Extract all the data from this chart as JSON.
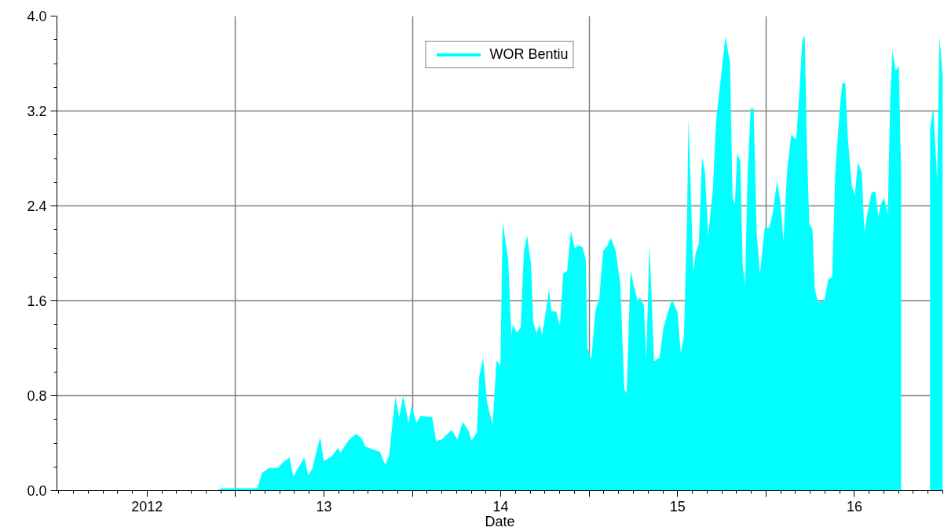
{
  "chart_data": {
    "type": "area",
    "xlabel": "Date",
    "x": [
      2012.392,
      2012.423,
      2012.459,
      2012.623,
      2012.65,
      2012.69,
      2012.738,
      2012.769,
      2012.805,
      2012.827,
      2012.889,
      2012.911,
      2012.933,
      2012.978,
      2013.0,
      2013.044,
      2013.08,
      2013.093,
      2013.137,
      2013.182,
      2013.213,
      2013.235,
      2013.288,
      2013.315,
      2013.346,
      2013.368,
      2013.404,
      2013.426,
      2013.448,
      2013.479,
      2013.497,
      2013.523,
      2013.546,
      2013.612,
      2013.634,
      2013.665,
      2013.692,
      2013.723,
      2013.754,
      2013.785,
      2013.82,
      2013.834,
      2013.865,
      2013.878,
      2013.9,
      2013.922,
      2013.954,
      2013.976,
      2013.998,
      2014.011,
      2014.042,
      2014.051,
      2014.06,
      2014.069,
      2014.091,
      2014.113,
      2014.131,
      2014.149,
      2014.171,
      2014.184,
      2014.202,
      2014.22,
      2014.233,
      2014.251,
      2014.273,
      2014.286,
      2014.313,
      2014.335,
      2014.353,
      2014.375,
      2014.397,
      2014.419,
      2014.441,
      2014.464,
      2014.481,
      2014.49,
      2014.512,
      2014.535,
      2014.557,
      2014.579,
      2014.601,
      2014.623,
      2014.65,
      2014.676,
      2014.699,
      2014.712,
      2014.734,
      2014.752,
      2014.774,
      2014.787,
      2014.809,
      2014.823,
      2014.841,
      2014.858,
      2014.867,
      2014.898,
      2014.92,
      2014.947,
      2014.969,
      2015.0,
      2015.018,
      2015.036,
      2015.053,
      2015.062,
      2015.089,
      2015.102,
      2015.12,
      2015.138,
      2015.155,
      2015.173,
      2015.2,
      2015.218,
      2015.271,
      2015.297,
      2015.311,
      2015.324,
      2015.337,
      2015.355,
      2015.368,
      2015.382,
      2015.395,
      2015.413,
      2015.43,
      2015.448,
      2015.466,
      2015.492,
      2015.519,
      2015.537,
      2015.563,
      2015.581,
      2015.599,
      2015.608,
      2015.621,
      2015.643,
      2015.67,
      2015.683,
      2015.705,
      2015.719,
      2015.732,
      2015.745,
      2015.763,
      2015.776,
      2015.794,
      2015.83,
      2015.852,
      2015.874,
      2015.892,
      2015.918,
      2015.932,
      2015.949,
      2015.963,
      2015.985,
      2016.002,
      2016.02,
      2016.042,
      2016.056,
      2016.073,
      2016.096,
      2016.118,
      2016.135,
      2016.149,
      2016.167,
      2016.189,
      2016.202,
      2016.215,
      2016.233,
      2016.251,
      2016.264,
      2016.34,
      2016.428,
      2016.446,
      2016.468,
      2016.481,
      2016.5
    ],
    "series": [
      {
        "name": "WOR Bentiu",
        "color": "#00ffff",
        "values": [
          0,
          0.02,
          0.02,
          0.02,
          0.15,
          0.19,
          0.19,
          0.24,
          0.28,
          0.12,
          0.28,
          0.13,
          0.18,
          0.45,
          0.25,
          0.29,
          0.36,
          0.32,
          0.42,
          0.48,
          0.44,
          0.37,
          0.34,
          0.33,
          0.22,
          0.29,
          0.79,
          0.62,
          0.8,
          0.57,
          0.72,
          0.57,
          0.63,
          0.62,
          0.42,
          0.43,
          0.47,
          0.51,
          0.43,
          0.58,
          0.5,
          0.42,
          0.49,
          0.96,
          1.12,
          0.75,
          0.55,
          1.1,
          1.05,
          2.26,
          1.95,
          1.62,
          1.31,
          1.4,
          1.33,
          1.38,
          2.02,
          2.15,
          1.91,
          1.42,
          1.33,
          1.4,
          1.31,
          1.47,
          1.7,
          1.51,
          1.51,
          1.39,
          1.83,
          1.85,
          2.19,
          2.04,
          2.07,
          2.05,
          1.94,
          1.2,
          1.11,
          1.51,
          1.62,
          2.02,
          2.06,
          2.13,
          2.02,
          1.74,
          0.85,
          0.82,
          1.86,
          1.73,
          1.6,
          1.63,
          1.56,
          1.11,
          2.08,
          1.44,
          1.09,
          1.12,
          1.37,
          1.51,
          1.61,
          1.5,
          1.16,
          1.3,
          2.26,
          3.14,
          1.83,
          2.0,
          2.08,
          2.81,
          2.68,
          2.14,
          2.55,
          3.12,
          3.83,
          3.6,
          2.47,
          2.41,
          2.84,
          2.78,
          1.91,
          1.73,
          2.62,
          3.22,
          3.22,
          2.15,
          1.83,
          2.21,
          2.22,
          2.33,
          2.61,
          2.44,
          2.1,
          2.39,
          2.72,
          3.0,
          2.96,
          3.21,
          3.79,
          3.84,
          2.86,
          2.25,
          2.2,
          1.7,
          1.59,
          1.6,
          1.78,
          1.8,
          2.69,
          3.23,
          3.44,
          3.43,
          2.97,
          2.57,
          2.49,
          2.77,
          2.68,
          2.18,
          2.33,
          2.51,
          2.52,
          2.31,
          2.41,
          2.47,
          2.33,
          3.26,
          3.71,
          3.54,
          3.58,
          2.68,
          null,
          3.05,
          3.23,
          2.62,
          3.83,
          3.47
        ]
      }
    ],
    "xlim": [
      2011.49,
      2016.5
    ],
    "xticks": [
      {
        "value": 2012,
        "label": "2012"
      },
      {
        "value": 2012.5,
        "label": null
      },
      {
        "value": 2013,
        "label": "13"
      },
      {
        "value": 2013.5,
        "label": null
      },
      {
        "value": 2014,
        "label": "14"
      },
      {
        "value": 2014.5,
        "label": null
      },
      {
        "value": 2015,
        "label": "15"
      },
      {
        "value": 2015.5,
        "label": null
      },
      {
        "value": 2016,
        "label": "16"
      }
    ],
    "ylim": [
      0,
      4.0
    ],
    "yticks": [
      {
        "value": 0,
        "label": "0.0"
      },
      0.8,
      1.6,
      2.4,
      3.2,
      {
        "value": 4,
        "label": "4.0"
      }
    ],
    "grid": true,
    "legend": "top"
  }
}
